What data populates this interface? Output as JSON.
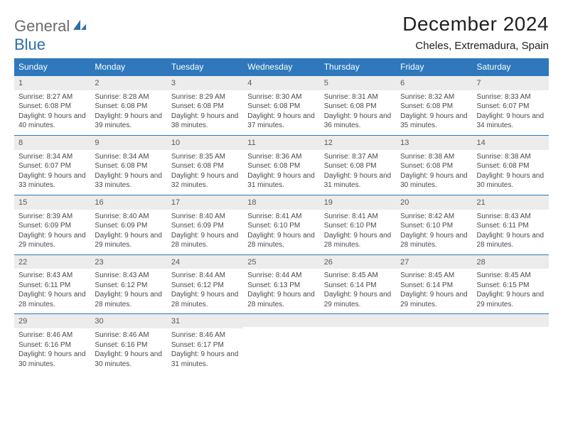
{
  "brand": {
    "word1": "General",
    "word2": "Blue"
  },
  "title": "December 2024",
  "location": "Cheles, Extremadura, Spain",
  "colors": {
    "header_bg": "#2e78bb",
    "header_fg": "#ffffff",
    "daynum_bg": "#ececec",
    "text": "#4a4a4a",
    "brand_gray": "#6b6b6b",
    "brand_blue": "#2e6da8",
    "row_border": "#2e78bb"
  },
  "weekdays": [
    "Sunday",
    "Monday",
    "Tuesday",
    "Wednesday",
    "Thursday",
    "Friday",
    "Saturday"
  ],
  "weeks": [
    [
      {
        "n": "1",
        "sr": "8:27 AM",
        "ss": "6:08 PM",
        "dl": "9 hours and 40 minutes."
      },
      {
        "n": "2",
        "sr": "8:28 AM",
        "ss": "6:08 PM",
        "dl": "9 hours and 39 minutes."
      },
      {
        "n": "3",
        "sr": "8:29 AM",
        "ss": "6:08 PM",
        "dl": "9 hours and 38 minutes."
      },
      {
        "n": "4",
        "sr": "8:30 AM",
        "ss": "6:08 PM",
        "dl": "9 hours and 37 minutes."
      },
      {
        "n": "5",
        "sr": "8:31 AM",
        "ss": "6:08 PM",
        "dl": "9 hours and 36 minutes."
      },
      {
        "n": "6",
        "sr": "8:32 AM",
        "ss": "6:08 PM",
        "dl": "9 hours and 35 minutes."
      },
      {
        "n": "7",
        "sr": "8:33 AM",
        "ss": "6:07 PM",
        "dl": "9 hours and 34 minutes."
      }
    ],
    [
      {
        "n": "8",
        "sr": "8:34 AM",
        "ss": "6:07 PM",
        "dl": "9 hours and 33 minutes."
      },
      {
        "n": "9",
        "sr": "8:34 AM",
        "ss": "6:08 PM",
        "dl": "9 hours and 33 minutes."
      },
      {
        "n": "10",
        "sr": "8:35 AM",
        "ss": "6:08 PM",
        "dl": "9 hours and 32 minutes."
      },
      {
        "n": "11",
        "sr": "8:36 AM",
        "ss": "6:08 PM",
        "dl": "9 hours and 31 minutes."
      },
      {
        "n": "12",
        "sr": "8:37 AM",
        "ss": "6:08 PM",
        "dl": "9 hours and 31 minutes."
      },
      {
        "n": "13",
        "sr": "8:38 AM",
        "ss": "6:08 PM",
        "dl": "9 hours and 30 minutes."
      },
      {
        "n": "14",
        "sr": "8:38 AM",
        "ss": "6:08 PM",
        "dl": "9 hours and 30 minutes."
      }
    ],
    [
      {
        "n": "15",
        "sr": "8:39 AM",
        "ss": "6:09 PM",
        "dl": "9 hours and 29 minutes."
      },
      {
        "n": "16",
        "sr": "8:40 AM",
        "ss": "6:09 PM",
        "dl": "9 hours and 29 minutes."
      },
      {
        "n": "17",
        "sr": "8:40 AM",
        "ss": "6:09 PM",
        "dl": "9 hours and 28 minutes."
      },
      {
        "n": "18",
        "sr": "8:41 AM",
        "ss": "6:10 PM",
        "dl": "9 hours and 28 minutes."
      },
      {
        "n": "19",
        "sr": "8:41 AM",
        "ss": "6:10 PM",
        "dl": "9 hours and 28 minutes."
      },
      {
        "n": "20",
        "sr": "8:42 AM",
        "ss": "6:10 PM",
        "dl": "9 hours and 28 minutes."
      },
      {
        "n": "21",
        "sr": "8:43 AM",
        "ss": "6:11 PM",
        "dl": "9 hours and 28 minutes."
      }
    ],
    [
      {
        "n": "22",
        "sr": "8:43 AM",
        "ss": "6:11 PM",
        "dl": "9 hours and 28 minutes."
      },
      {
        "n": "23",
        "sr": "8:43 AM",
        "ss": "6:12 PM",
        "dl": "9 hours and 28 minutes."
      },
      {
        "n": "24",
        "sr": "8:44 AM",
        "ss": "6:12 PM",
        "dl": "9 hours and 28 minutes."
      },
      {
        "n": "25",
        "sr": "8:44 AM",
        "ss": "6:13 PM",
        "dl": "9 hours and 28 minutes."
      },
      {
        "n": "26",
        "sr": "8:45 AM",
        "ss": "6:14 PM",
        "dl": "9 hours and 29 minutes."
      },
      {
        "n": "27",
        "sr": "8:45 AM",
        "ss": "6:14 PM",
        "dl": "9 hours and 29 minutes."
      },
      {
        "n": "28",
        "sr": "8:45 AM",
        "ss": "6:15 PM",
        "dl": "9 hours and 29 minutes."
      }
    ],
    [
      {
        "n": "29",
        "sr": "8:46 AM",
        "ss": "6:16 PM",
        "dl": "9 hours and 30 minutes."
      },
      {
        "n": "30",
        "sr": "8:46 AM",
        "ss": "6:16 PM",
        "dl": "9 hours and 30 minutes."
      },
      {
        "n": "31",
        "sr": "8:46 AM",
        "ss": "6:17 PM",
        "dl": "9 hours and 31 minutes."
      },
      null,
      null,
      null,
      null
    ]
  ],
  "labels": {
    "sunrise": "Sunrise:",
    "sunset": "Sunset:",
    "daylight": "Daylight:"
  }
}
